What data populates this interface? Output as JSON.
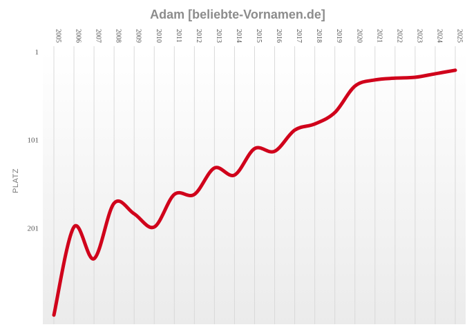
{
  "chart_data": {
    "type": "line",
    "title": "Adam [beliebte-Vornamen.de]",
    "ylabel": "PLATZ",
    "xlabel": "",
    "y_reversed": true,
    "ylim": [
      1,
      301
    ],
    "ytick_labels": [
      "1",
      "101",
      "201"
    ],
    "ytick_values": [
      1,
      101,
      201
    ],
    "categories": [
      "2005",
      "2006",
      "2007",
      "2008",
      "2009",
      "2010",
      "2011",
      "2012",
      "2013",
      "2014",
      "2015",
      "2016",
      "2017",
      "2018",
      "2019",
      "2020",
      "2021",
      "2022",
      "2023",
      "2024",
      "2025"
    ],
    "series": [
      {
        "color": "#d0021b",
        "values": [
          300,
          200,
          236,
          173,
          185,
          200,
          163,
          163,
          133,
          141,
          111,
          114,
          90,
          83,
          70,
          40,
          33,
          31,
          30,
          26,
          22
        ]
      }
    ],
    "grid": true,
    "background_gradient": [
      "#ffffff",
      "#ebebeb"
    ]
  }
}
